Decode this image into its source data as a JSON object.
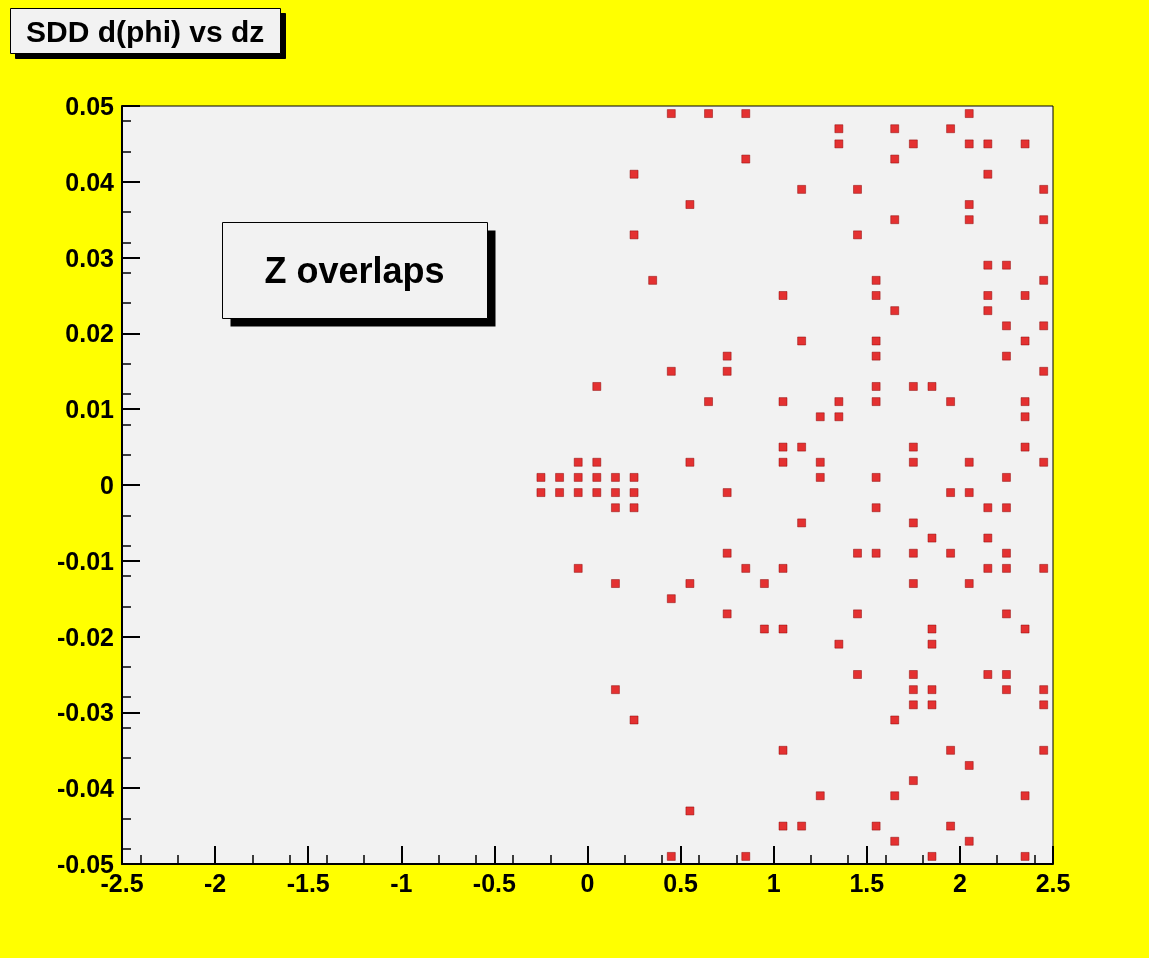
{
  "chart_data": {
    "type": "scatter",
    "title": "SDD d(phi) vs dz",
    "annotations": [
      "Z overlaps"
    ],
    "xlim": [
      -2.5,
      2.5
    ],
    "xticks": [
      -2.5,
      -2,
      -1.5,
      -1,
      -0.5,
      0,
      0.5,
      1,
      1.5,
      2,
      2.5
    ],
    "ylim": [
      -0.05,
      0.05
    ],
    "yticks": [
      -0.05,
      -0.04,
      -0.03,
      -0.02,
      -0.01,
      0,
      0.01,
      0.02,
      0.03,
      0.04,
      0.05
    ],
    "marker": "square",
    "series": [
      {
        "color": "#e00000",
        "x": [
          0.45,
          0.65,
          0.85,
          2.05,
          1.35,
          1.65,
          1.95,
          1.35,
          1.75,
          2.05,
          2.15,
          2.35,
          0.85,
          1.65,
          0.25,
          2.15,
          1.15,
          1.45,
          2.45,
          0.55,
          2.05,
          1.65,
          2.05,
          2.45,
          0.25,
          1.45,
          2.15,
          2.25,
          0.35,
          1.55,
          2.45,
          1.05,
          1.55,
          2.15,
          2.35,
          1.65,
          2.15,
          2.25,
          2.45,
          1.15,
          1.55,
          2.35,
          0.75,
          1.55,
          2.25,
          0.45,
          0.75,
          2.45,
          0.05,
          1.55,
          1.75,
          1.85,
          0.65,
          1.05,
          1.35,
          1.55,
          1.95,
          2.35,
          1.25,
          1.35,
          2.35,
          1.05,
          1.15,
          1.75,
          2.35,
          -0.05,
          0.05,
          0.55,
          1.05,
          1.25,
          1.75,
          2.05,
          2.45,
          -0.25,
          -0.15,
          -0.05,
          0.05,
          0.15,
          0.25,
          1.25,
          1.55,
          2.25,
          -0.25,
          -0.15,
          -0.05,
          0.05,
          0.15,
          0.25,
          0.75,
          1.95,
          2.05,
          0.15,
          0.25,
          1.55,
          2.15,
          2.25,
          1.15,
          1.75,
          1.85,
          2.15,
          0.75,
          1.45,
          1.55,
          1.75,
          1.95,
          2.25,
          -0.05,
          0.85,
          1.05,
          2.15,
          2.25,
          2.45,
          0.15,
          0.55,
          0.95,
          1.75,
          2.05,
          0.45,
          0.75,
          1.45,
          2.25,
          0.95,
          1.05,
          1.85,
          2.35,
          1.35,
          1.85,
          1.45,
          1.75,
          2.15,
          2.25,
          0.15,
          1.75,
          1.85,
          2.25,
          2.45,
          1.75,
          1.85,
          2.45,
          0.25,
          1.65,
          1.05,
          1.95,
          2.45,
          2.05,
          1.75,
          1.25,
          1.65,
          2.35,
          0.55,
          1.05,
          1.15,
          1.55,
          1.95,
          1.65,
          2.05,
          0.45,
          0.85,
          1.85,
          2.35
        ],
        "values": [
          0.049,
          0.049,
          0.049,
          0.049,
          0.047,
          0.047,
          0.047,
          0.045,
          0.045,
          0.045,
          0.045,
          0.045,
          0.043,
          0.043,
          0.041,
          0.041,
          0.039,
          0.039,
          0.039,
          0.037,
          0.037,
          0.035,
          0.035,
          0.035,
          0.033,
          0.033,
          0.029,
          0.029,
          0.027,
          0.027,
          0.027,
          0.025,
          0.025,
          0.025,
          0.025,
          0.023,
          0.023,
          0.021,
          0.021,
          0.019,
          0.019,
          0.019,
          0.017,
          0.017,
          0.017,
          0.015,
          0.015,
          0.015,
          0.013,
          0.013,
          0.013,
          0.013,
          0.011,
          0.011,
          0.011,
          0.011,
          0.011,
          0.011,
          0.009,
          0.009,
          0.009,
          0.005,
          0.005,
          0.005,
          0.005,
          0.003,
          0.003,
          0.003,
          0.003,
          0.003,
          0.003,
          0.003,
          0.003,
          0.001,
          0.001,
          0.001,
          0.001,
          0.001,
          0.001,
          0.001,
          0.001,
          0.001,
          -0.001,
          -0.001,
          -0.001,
          -0.001,
          -0.001,
          -0.001,
          -0.001,
          -0.001,
          -0.001,
          -0.003,
          -0.003,
          -0.003,
          -0.003,
          -0.003,
          -0.005,
          -0.005,
          -0.007,
          -0.007,
          -0.009,
          -0.009,
          -0.009,
          -0.009,
          -0.009,
          -0.009,
          -0.011,
          -0.011,
          -0.011,
          -0.011,
          -0.011,
          -0.011,
          -0.013,
          -0.013,
          -0.013,
          -0.013,
          -0.013,
          -0.015,
          -0.017,
          -0.017,
          -0.017,
          -0.019,
          -0.019,
          -0.019,
          -0.019,
          -0.021,
          -0.021,
          -0.025,
          -0.025,
          -0.025,
          -0.025,
          -0.027,
          -0.027,
          -0.027,
          -0.027,
          -0.027,
          -0.029,
          -0.029,
          -0.029,
          -0.031,
          -0.031,
          -0.035,
          -0.035,
          -0.035,
          -0.037,
          -0.039,
          -0.041,
          -0.041,
          -0.041,
          -0.043,
          -0.045,
          -0.045,
          -0.045,
          -0.045,
          -0.047,
          -0.047,
          -0.049,
          -0.049,
          -0.049,
          -0.049
        ]
      }
    ]
  }
}
